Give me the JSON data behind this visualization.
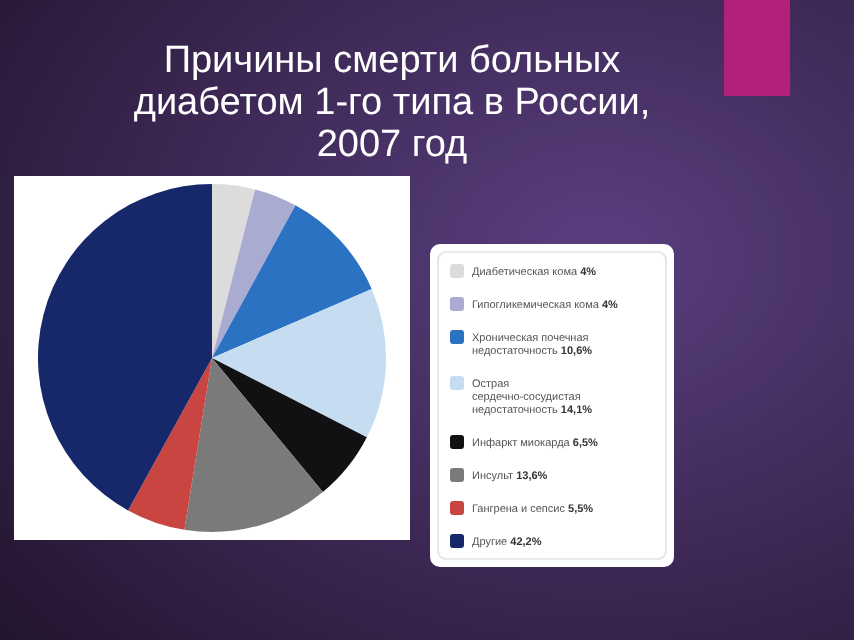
{
  "chart_data": {
    "type": "pie",
    "title": "Причины смерти больных диабетом 1-го типа в России, 2007 год",
    "categories": [
      "Диабетическая кома",
      "Гипогликемическая кома",
      "Хроническая почечная недостаточность",
      "Острая сердечно-сосудистая недостаточность",
      "Инфаркт миокарда",
      "Инсульт",
      "Гангрена и сепсис",
      "Другие"
    ],
    "values": [
      4,
      4,
      10.6,
      14.1,
      6.5,
      13.6,
      5.5,
      42.2
    ],
    "value_labels": [
      "4%",
      "4%",
      "10,6%",
      "14,1%",
      "6,5%",
      "13,6%",
      "5,5%",
      "42,2%"
    ],
    "colors": [
      "#dcdcdc",
      "#a9abd0",
      "#2b72c2",
      "#c6dcf1",
      "#111114",
      "#7a7a7a",
      "#c94541",
      "#16276a"
    ],
    "legend": "right"
  }
}
